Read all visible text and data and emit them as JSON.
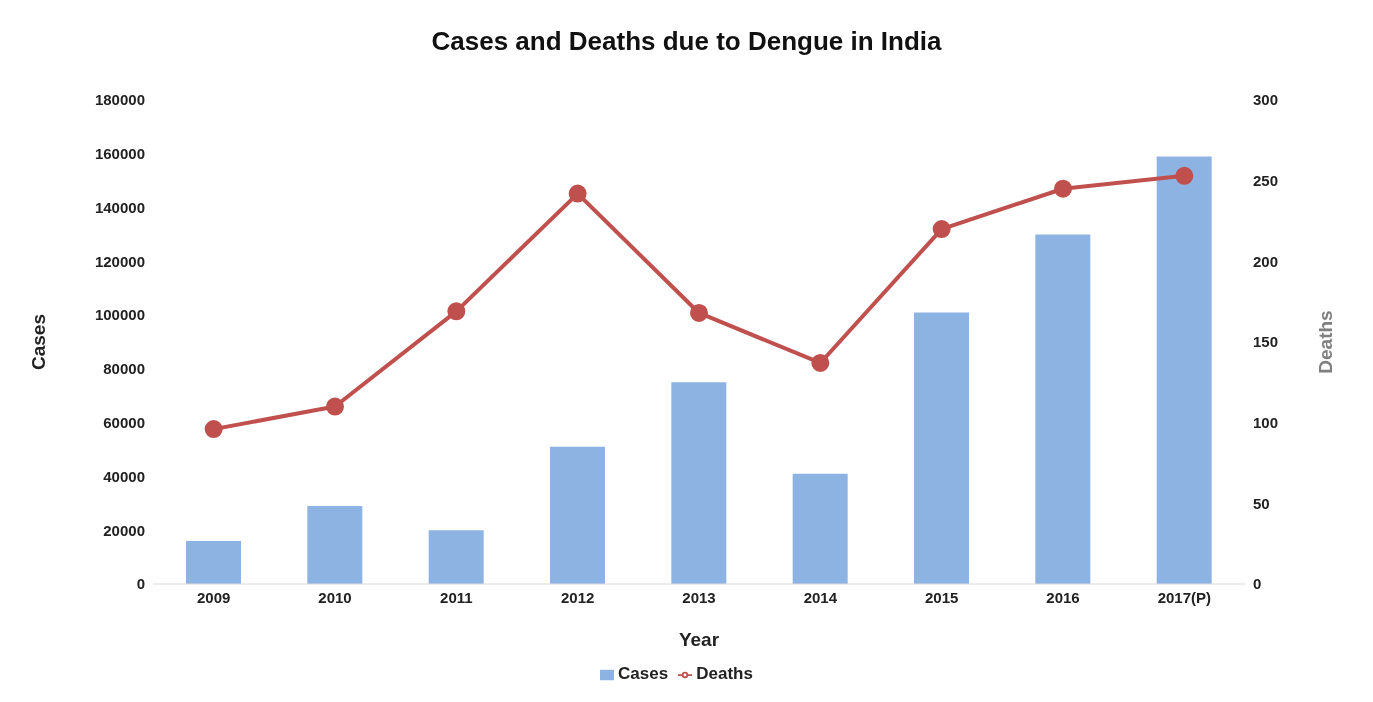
{
  "chart_data": {
    "type": "bar",
    "title": "Cases and Deaths due to Dengue in India",
    "xlabel": "Year",
    "ylabel": "Cases",
    "y2label": "Deaths",
    "categories": [
      "2009",
      "2010",
      "2011",
      "2012",
      "2013",
      "2014",
      "2015",
      "2016",
      "2017(P)"
    ],
    "series": [
      {
        "name": "Cases",
        "color": "#8db3e2",
        "values": [
          16000,
          29000,
          20000,
          51000,
          75000,
          41000,
          101000,
          130000,
          159000
        ]
      },
      {
        "name": "Deaths",
        "type": "line",
        "axis": "y2",
        "color": "#c0504d",
        "marker": "circle",
        "values": [
          96,
          110,
          169,
          242,
          168,
          137,
          220,
          245,
          253
        ]
      }
    ],
    "ylim": [
      0,
      180000
    ],
    "yticks": [
      0,
      20000,
      40000,
      60000,
      80000,
      100000,
      120000,
      140000,
      160000,
      180000
    ],
    "y2lim": [
      0,
      300
    ],
    "y2ticks": [
      0,
      50,
      100,
      150,
      200,
      250,
      300
    ],
    "grid": false,
    "legend": "bottom"
  }
}
